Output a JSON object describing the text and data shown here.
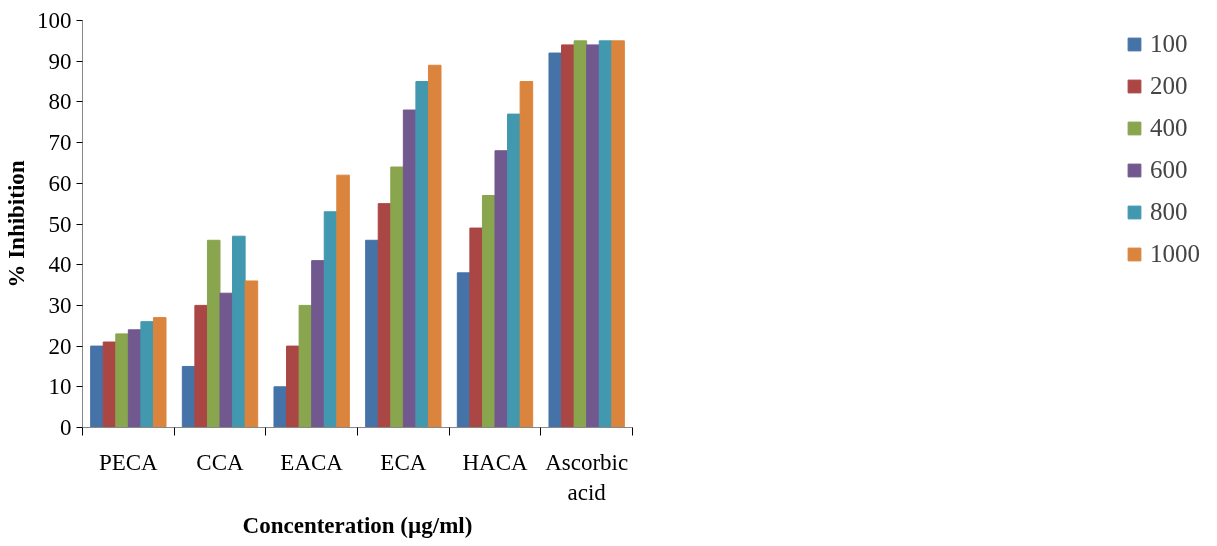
{
  "chart_data": {
    "type": "bar",
    "xlabel": "Concenteration (µg/ml)",
    "ylabel": "% Inhibition",
    "categories": [
      "PECA",
      "CCA",
      "EACA",
      "ECA",
      "HACA",
      "Ascorbic\nacid"
    ],
    "series": [
      {
        "name": "100",
        "color": "#4572a7",
        "values": [
          20,
          15,
          10,
          46,
          38,
          92
        ]
      },
      {
        "name": "200",
        "color": "#aa4643",
        "values": [
          21,
          30,
          20,
          55,
          49,
          94
        ]
      },
      {
        "name": "400",
        "color": "#89a54e",
        "values": [
          23,
          46,
          30,
          64,
          57,
          95
        ]
      },
      {
        "name": "600",
        "color": "#71588f",
        "values": [
          24,
          33,
          41,
          78,
          68,
          94
        ]
      },
      {
        "name": "800",
        "color": "#4198af",
        "values": [
          26,
          47,
          53,
          85,
          77,
          95
        ]
      },
      {
        "name": "1000",
        "color": "#db843d",
        "values": [
          27,
          36,
          62,
          89,
          85,
          95
        ]
      }
    ],
    "ylim": [
      0,
      100
    ],
    "yticks": [
      0,
      10,
      20,
      30,
      40,
      50,
      60,
      70,
      80,
      90,
      100
    ],
    "grid": false,
    "legend": "right"
  }
}
